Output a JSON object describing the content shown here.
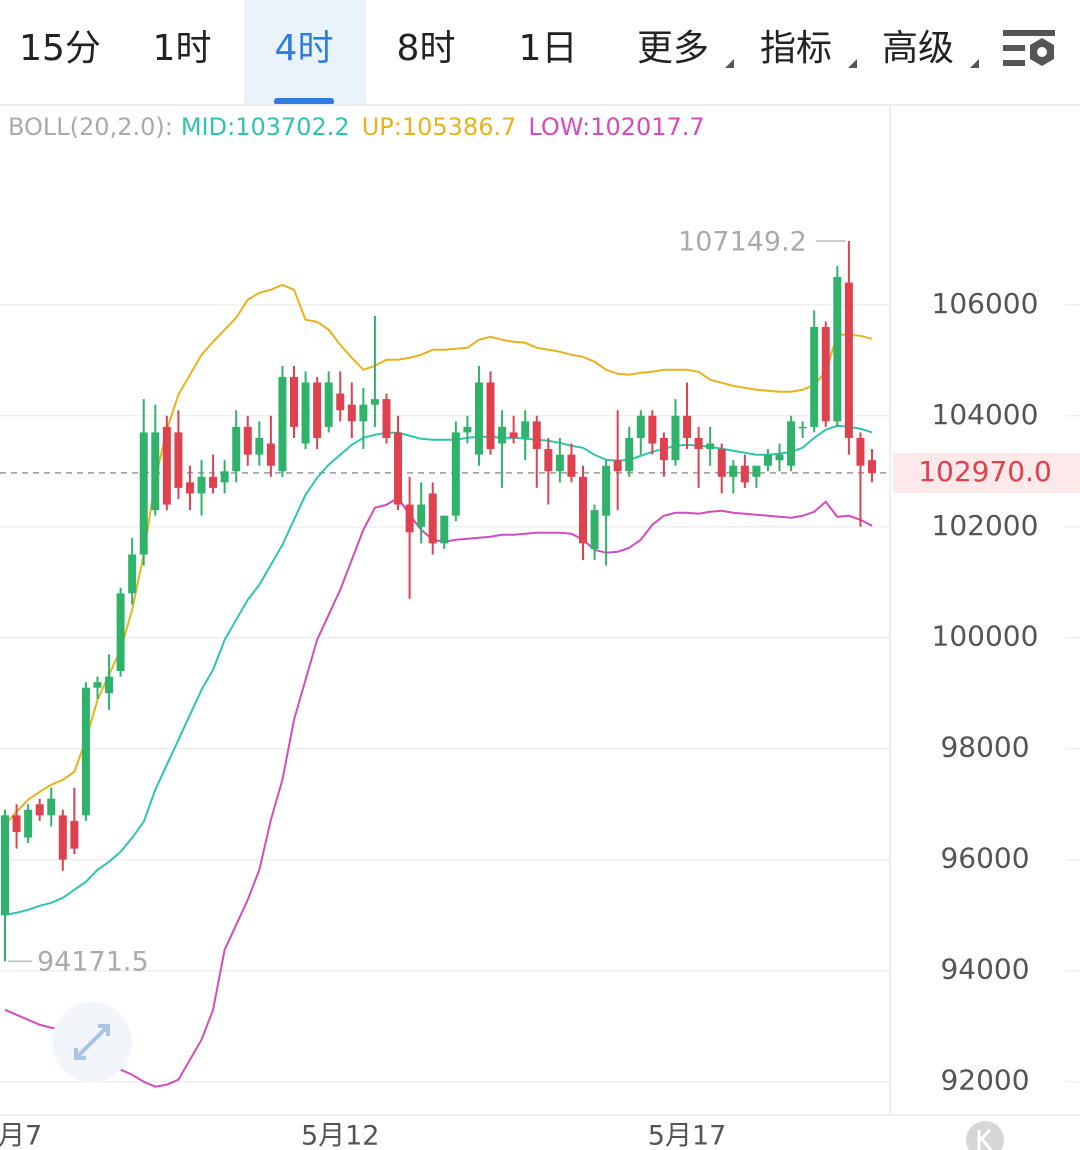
{
  "tabs": {
    "items": [
      "15分",
      "1时",
      "4时",
      "8时",
      "1日",
      "更多",
      "指标",
      "高级"
    ],
    "active": 2
  },
  "chart_data": {
    "type": "candlestick",
    "indicator": "BOLL(20,2.0):",
    "legend_separator": ":",
    "categories": [
      "月7",
      null,
      null,
      null,
      null,
      null,
      null,
      null,
      null,
      null,
      null,
      null,
      null,
      null,
      null,
      null,
      null,
      null,
      null,
      null,
      null,
      null,
      null,
      null,
      null,
      null,
      null,
      null,
      null,
      "5月12",
      null,
      null,
      null,
      null,
      null,
      null,
      null,
      null,
      null,
      null,
      null,
      null,
      null,
      null,
      null,
      null,
      null,
      null,
      null,
      null,
      null,
      null,
      null,
      null,
      null,
      null,
      null,
      null,
      null,
      "5月17",
      null,
      null,
      null,
      null,
      null,
      null,
      null,
      null,
      null,
      null,
      null,
      null,
      null,
      null,
      null,
      null
    ],
    "candles": {
      "up_color": "#2fb36a",
      "down_color": "#e0414f",
      "open": [
        95000,
        96800,
        96400,
        97000,
        96800,
        96800,
        96700,
        96800,
        99100,
        99000,
        99400,
        100800,
        101500,
        102300,
        103800,
        103700,
        102800,
        102600,
        102900,
        102800,
        103000,
        103800,
        103300,
        103500,
        103000,
        104700,
        103500,
        104600,
        103800,
        104400,
        104200,
        103900,
        104200,
        104300,
        103700,
        102400,
        102000,
        102600,
        101700,
        102200,
        103700,
        103300,
        104600,
        103500,
        103700,
        103600,
        103900,
        103400,
        103000,
        103300,
        102900,
        101600,
        102200,
        103200,
        103000,
        103600,
        104000,
        103600,
        103200,
        104000,
        103600,
        103400,
        103400,
        102900,
        103100,
        102900,
        103100,
        103200,
        103100,
        103800,
        103800,
        105600,
        103900,
        106400,
        103600,
        103200
      ],
      "high": [
        96900,
        97000,
        97000,
        97100,
        97300,
        96900,
        97300,
        99200,
        99300,
        99700,
        100900,
        101800,
        104300,
        104200,
        104000,
        104100,
        103100,
        103200,
        103300,
        103200,
        104100,
        104000,
        103900,
        104000,
        104900,
        104900,
        104800,
        104700,
        104800,
        104800,
        104600,
        104500,
        105800,
        104400,
        104000,
        102900,
        102800,
        102800,
        102200,
        103900,
        104000,
        104900,
        104800,
        104100,
        104000,
        104100,
        104000,
        103600,
        103600,
        103500,
        103100,
        102400,
        103200,
        104100,
        103800,
        104100,
        104100,
        103700,
        104300,
        104600,
        103800,
        103800,
        103500,
        103200,
        103300,
        103100,
        103400,
        103500,
        104000,
        103900,
        105900,
        105700,
        106700,
        107149.2,
        103700,
        103400
      ],
      "low": [
        94171.5,
        96200,
        96300,
        96700,
        96600,
        95800,
        96100,
        96700,
        98900,
        98700,
        99300,
        100600,
        101300,
        102200,
        102300,
        102500,
        102300,
        102200,
        102600,
        102600,
        102800,
        103100,
        103100,
        102900,
        102900,
        103600,
        103400,
        103400,
        103700,
        103900,
        103600,
        103400,
        103800,
        103500,
        102300,
        100700,
        101700,
        101500,
        101600,
        102100,
        103500,
        103100,
        103300,
        102700,
        103500,
        103200,
        102700,
        102400,
        102800,
        102800,
        101400,
        101400,
        101300,
        102300,
        102900,
        103300,
        103300,
        102900,
        103100,
        103400,
        102700,
        103100,
        102600,
        102600,
        102700,
        102700,
        103000,
        103000,
        103000,
        103600,
        103700,
        103800,
        103800,
        103300,
        102000,
        102800
      ],
      "close": [
        96800,
        96500,
        96900,
        96800,
        97100,
        96000,
        96200,
        99100,
        99200,
        99300,
        100800,
        101500,
        103700,
        103700,
        102400,
        102700,
        102600,
        102900,
        102700,
        103000,
        103800,
        103300,
        103600,
        103100,
        104700,
        103800,
        104600,
        103600,
        104600,
        104100,
        103900,
        104200,
        104300,
        103600,
        102400,
        101900,
        102400,
        101700,
        102200,
        103700,
        103800,
        104600,
        103400,
        103800,
        103600,
        103900,
        103400,
        103000,
        103300,
        102900,
        101700,
        102300,
        103100,
        103000,
        103600,
        104000,
        103500,
        103200,
        104000,
        103600,
        103400,
        103500,
        102900,
        103100,
        102800,
        103100,
        103300,
        103300,
        103900,
        103800,
        105600,
        103900,
        106500,
        103600,
        103100,
        102970
      ]
    },
    "series": [
      {
        "name": "MID",
        "color": "#2ec4b0",
        "values": [
          95008,
          95044,
          95098,
          95170,
          95224,
          95314,
          95458,
          95602,
          95819,
          95963,
          96143,
          96395,
          96683,
          97260,
          97711,
          98161,
          98612,
          99062,
          99423,
          99963,
          100324,
          100684,
          100955,
          101315,
          101675,
          102126,
          102576,
          102883,
          103117,
          103297,
          103477,
          103603,
          103657,
          103694,
          103694,
          103640,
          103585,
          103567,
          103567,
          103567,
          103603,
          103621,
          103621,
          103603,
          103603,
          103585,
          103567,
          103549,
          103513,
          103459,
          103423,
          103297,
          103207,
          103189,
          103207,
          103279,
          103351,
          103405,
          103459,
          103477,
          103459,
          103441,
          103405,
          103369,
          103333,
          103297,
          103297,
          103315,
          103351,
          103423,
          103603,
          103747,
          103820,
          103802,
          103766,
          103702.2
        ]
      },
      {
        "name": "UP",
        "color": "#e8b21e",
        "values": [
          96630,
          96864,
          97080,
          97224,
          97350,
          97440,
          97584,
          98161,
          98882,
          99333,
          99783,
          100504,
          101495,
          102847,
          103748,
          104378,
          104739,
          105099,
          105333,
          105550,
          105766,
          106090,
          106216,
          106270,
          106360,
          106270,
          105730,
          105694,
          105550,
          105279,
          105045,
          104829,
          104901,
          105009,
          105009,
          105045,
          105099,
          105189,
          105189,
          105207,
          105225,
          105369,
          105423,
          105369,
          105333,
          105315,
          105225,
          105189,
          105153,
          105099,
          105063,
          104973,
          104829,
          104757,
          104739,
          104775,
          104793,
          104829,
          104829,
          104829,
          104793,
          104649,
          104594,
          104540,
          104504,
          104468,
          104450,
          104432,
          104432,
          104468,
          104558,
          104793,
          105459,
          105459,
          105441,
          105386.7
        ]
      },
      {
        "name": "LOW",
        "color": "#d54bbd",
        "values": [
          93296,
          93206,
          93116,
          93026,
          92972,
          92936,
          92900,
          92756,
          92486,
          92306,
          92216,
          92126,
          92000,
          91910,
          91946,
          92036,
          92396,
          92756,
          93296,
          94377,
          94827,
          95278,
          95818,
          96719,
          97440,
          98521,
          99243,
          99964,
          100414,
          100864,
          101405,
          101946,
          102342,
          102396,
          102523,
          102216,
          101946,
          101766,
          101730,
          101766,
          101784,
          101802,
          101820,
          101856,
          101856,
          101874,
          101892,
          101892,
          101892,
          101874,
          101766,
          101585,
          101531,
          101549,
          101621,
          101766,
          102036,
          102198,
          102252,
          102252,
          102234,
          102270,
          102288,
          102252,
          102234,
          102216,
          102198,
          102180,
          102162,
          102198,
          102270,
          102450,
          102180,
          102198,
          102126,
          102017.7
        ]
      }
    ],
    "last_price": {
      "value": 102970,
      "label": "102970.0"
    },
    "ylim": [
      91400,
      109600
    ],
    "yticks": [
      92000,
      94000,
      96000,
      98000,
      100000,
      102000,
      104000,
      106000
    ],
    "grid": true
  }
}
